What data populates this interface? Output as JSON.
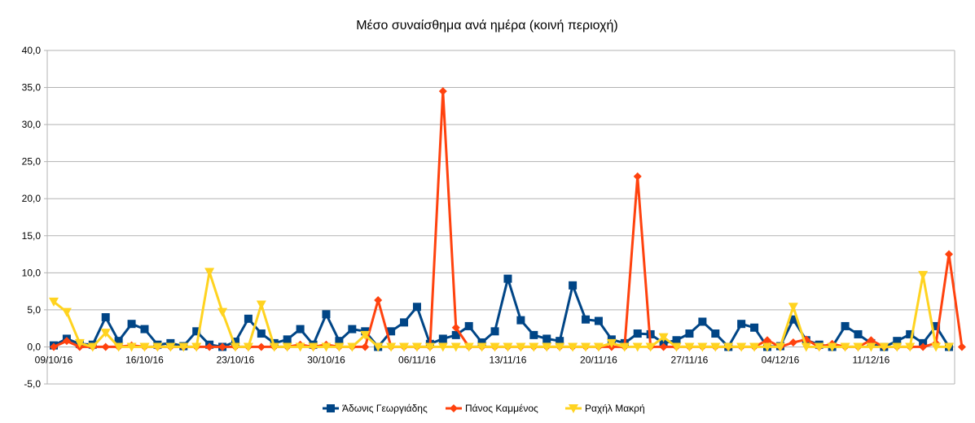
{
  "chart_data": {
    "type": "line",
    "title": "Μέσο συναίσθημα ανά ημέρα (κοινή περιοχή)",
    "xlabel": "",
    "ylabel": "",
    "ylim": [
      -5,
      40
    ],
    "y_ticks": [
      "-5,0",
      "0,0",
      "5,0",
      "10,0",
      "15,0",
      "20,0",
      "25,0",
      "30,0",
      "35,0",
      "40,0"
    ],
    "y_tick_values": [
      -5,
      0,
      5,
      10,
      15,
      20,
      25,
      30,
      35,
      40
    ],
    "x_start": "09/10/16",
    "x_end": "20/12/16",
    "x_tick_labels": [
      "09/10/16",
      "16/10/16",
      "23/10/16",
      "30/10/16",
      "06/11/16",
      "13/11/16",
      "20/11/16",
      "27/11/16",
      "04/12/16",
      "11/12/16"
    ],
    "grid": true,
    "legend": "bottom",
    "series": [
      {
        "name": "Άδωνις Γεωργιάδης",
        "color": "#004586",
        "marker": "square",
        "values": [
          0.2,
          1.1,
          0.4,
          0.3,
          4.0,
          0.8,
          3.1,
          2.4,
          0.3,
          0.5,
          0.1,
          2.1,
          0.3,
          0.0,
          0.7,
          3.8,
          1.8,
          0.5,
          1.0,
          2.4,
          0.3,
          4.4,
          0.8,
          2.4,
          2.1,
          0.0,
          2.1,
          3.3,
          5.4,
          0.4,
          1.1,
          1.6,
          2.8,
          0.6,
          2.1,
          9.2,
          3.6,
          1.6,
          1.1,
          0.8,
          8.3,
          3.7,
          3.5,
          1.0,
          0.5,
          1.8,
          1.7,
          0.5,
          0.9,
          1.8,
          3.4,
          1.8,
          0.0,
          3.1,
          2.6,
          0.0,
          0.1,
          3.7,
          0.9,
          0.3,
          0.0,
          2.8,
          1.7,
          0.5,
          0.0,
          0.8,
          1.7,
          0.5,
          2.8,
          0.0
        ]
      },
      {
        "name": "Πάνος Καμμένος",
        "color": "#ff420e",
        "marker": "diamond",
        "values": [
          0.0,
          0.8,
          0.0,
          0.0,
          0.0,
          0.0,
          0.2,
          0.0,
          0.0,
          0.0,
          0.0,
          0.0,
          0.0,
          0.0,
          0.0,
          0.0,
          0.0,
          0.0,
          0.0,
          0.3,
          0.0,
          0.3,
          0.0,
          0.0,
          0.0,
          6.3,
          0.0,
          0.0,
          0.0,
          0.0,
          34.5,
          2.6,
          0.0,
          0.0,
          0.0,
          0.0,
          0.0,
          0.0,
          0.0,
          0.0,
          0.0,
          0.0,
          0.0,
          0.0,
          0.0,
          23.0,
          0.0,
          0.0,
          0.0,
          0.0,
          0.0,
          0.0,
          0.0,
          0.0,
          0.0,
          0.9,
          0.0,
          0.6,
          1.0,
          0.0,
          0.4,
          0.0,
          0.0,
          0.9,
          0.0,
          0.0,
          0.0,
          0.0,
          0.5,
          12.5,
          0.0
        ]
      },
      {
        "name": "Ραχήλ Μακρή",
        "color": "#ffd320",
        "marker": "triangle-down",
        "values": [
          6.1,
          4.7,
          0.5,
          0.0,
          1.9,
          0.0,
          0.0,
          0.0,
          0.0,
          0.0,
          0.0,
          0.0,
          10.1,
          4.7,
          0.0,
          0.0,
          5.7,
          0.0,
          0.0,
          0.0,
          0.0,
          0.0,
          0.0,
          0.0,
          1.6,
          0.0,
          0.0,
          0.0,
          0.0,
          0.0,
          0.0,
          0.0,
          0.0,
          0.0,
          0.0,
          0.0,
          0.0,
          0.0,
          0.0,
          0.0,
          0.0,
          0.0,
          0.0,
          0.5,
          0.0,
          0.0,
          0.0,
          1.3,
          0.0,
          0.0,
          0.0,
          0.0,
          0.0,
          0.0,
          0.0,
          0.0,
          0.0,
          5.4,
          0.0,
          0.0,
          0.0,
          0.0,
          0.0,
          0.0,
          0.0,
          0.0,
          0.0,
          9.7,
          0.0,
          0.0
        ]
      }
    ]
  }
}
